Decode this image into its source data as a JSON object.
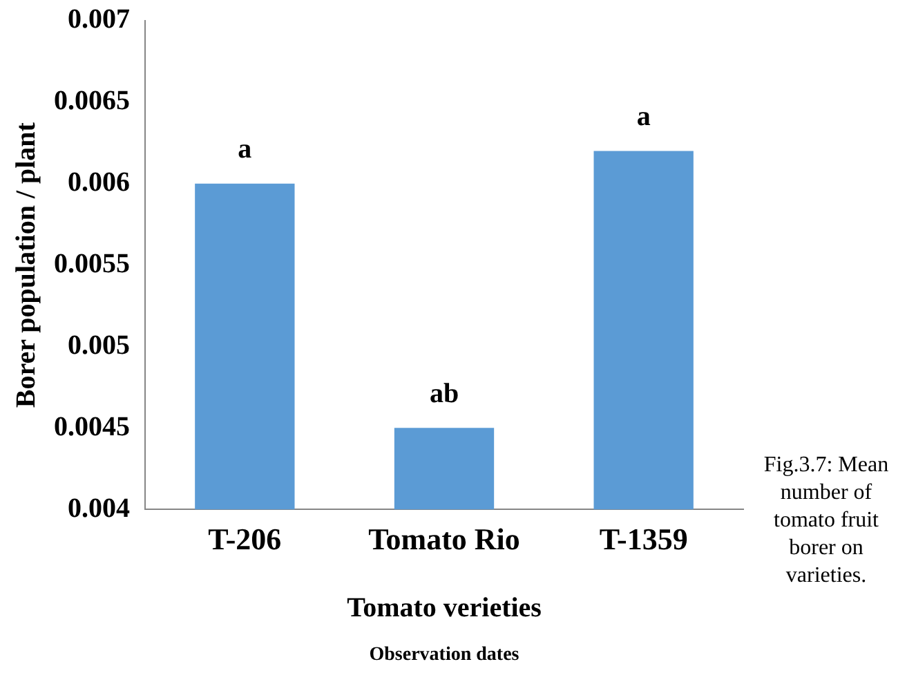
{
  "chart_data": {
    "type": "bar",
    "xlabel": "Tomato verieties",
    "ylabel": "Borer population / plant",
    "categories": [
      "T-206",
      "Tomato Rio",
      "T-1359"
    ],
    "values": [
      0.006,
      0.0045,
      0.0062
    ],
    "color": "#5b9bd5",
    "ylim": [
      0.004,
      0.007
    ],
    "yticks": [
      0.004,
      0.0045,
      0.005,
      0.0055,
      0.006,
      0.0065,
      0.007
    ],
    "grid": false,
    "legend": false,
    "annotations": [
      {
        "text": "a",
        "x": "T-206",
        "y": 0.006
      },
      {
        "text": "ab",
        "x": "Tomato Rio",
        "y": 0.0045
      },
      {
        "text": "a",
        "x": "T-1359",
        "y": 0.0062
      },
      "Fig.3.7: Mean number of tomato fruit borer on varieties.",
      "Observation dates"
    ]
  }
}
